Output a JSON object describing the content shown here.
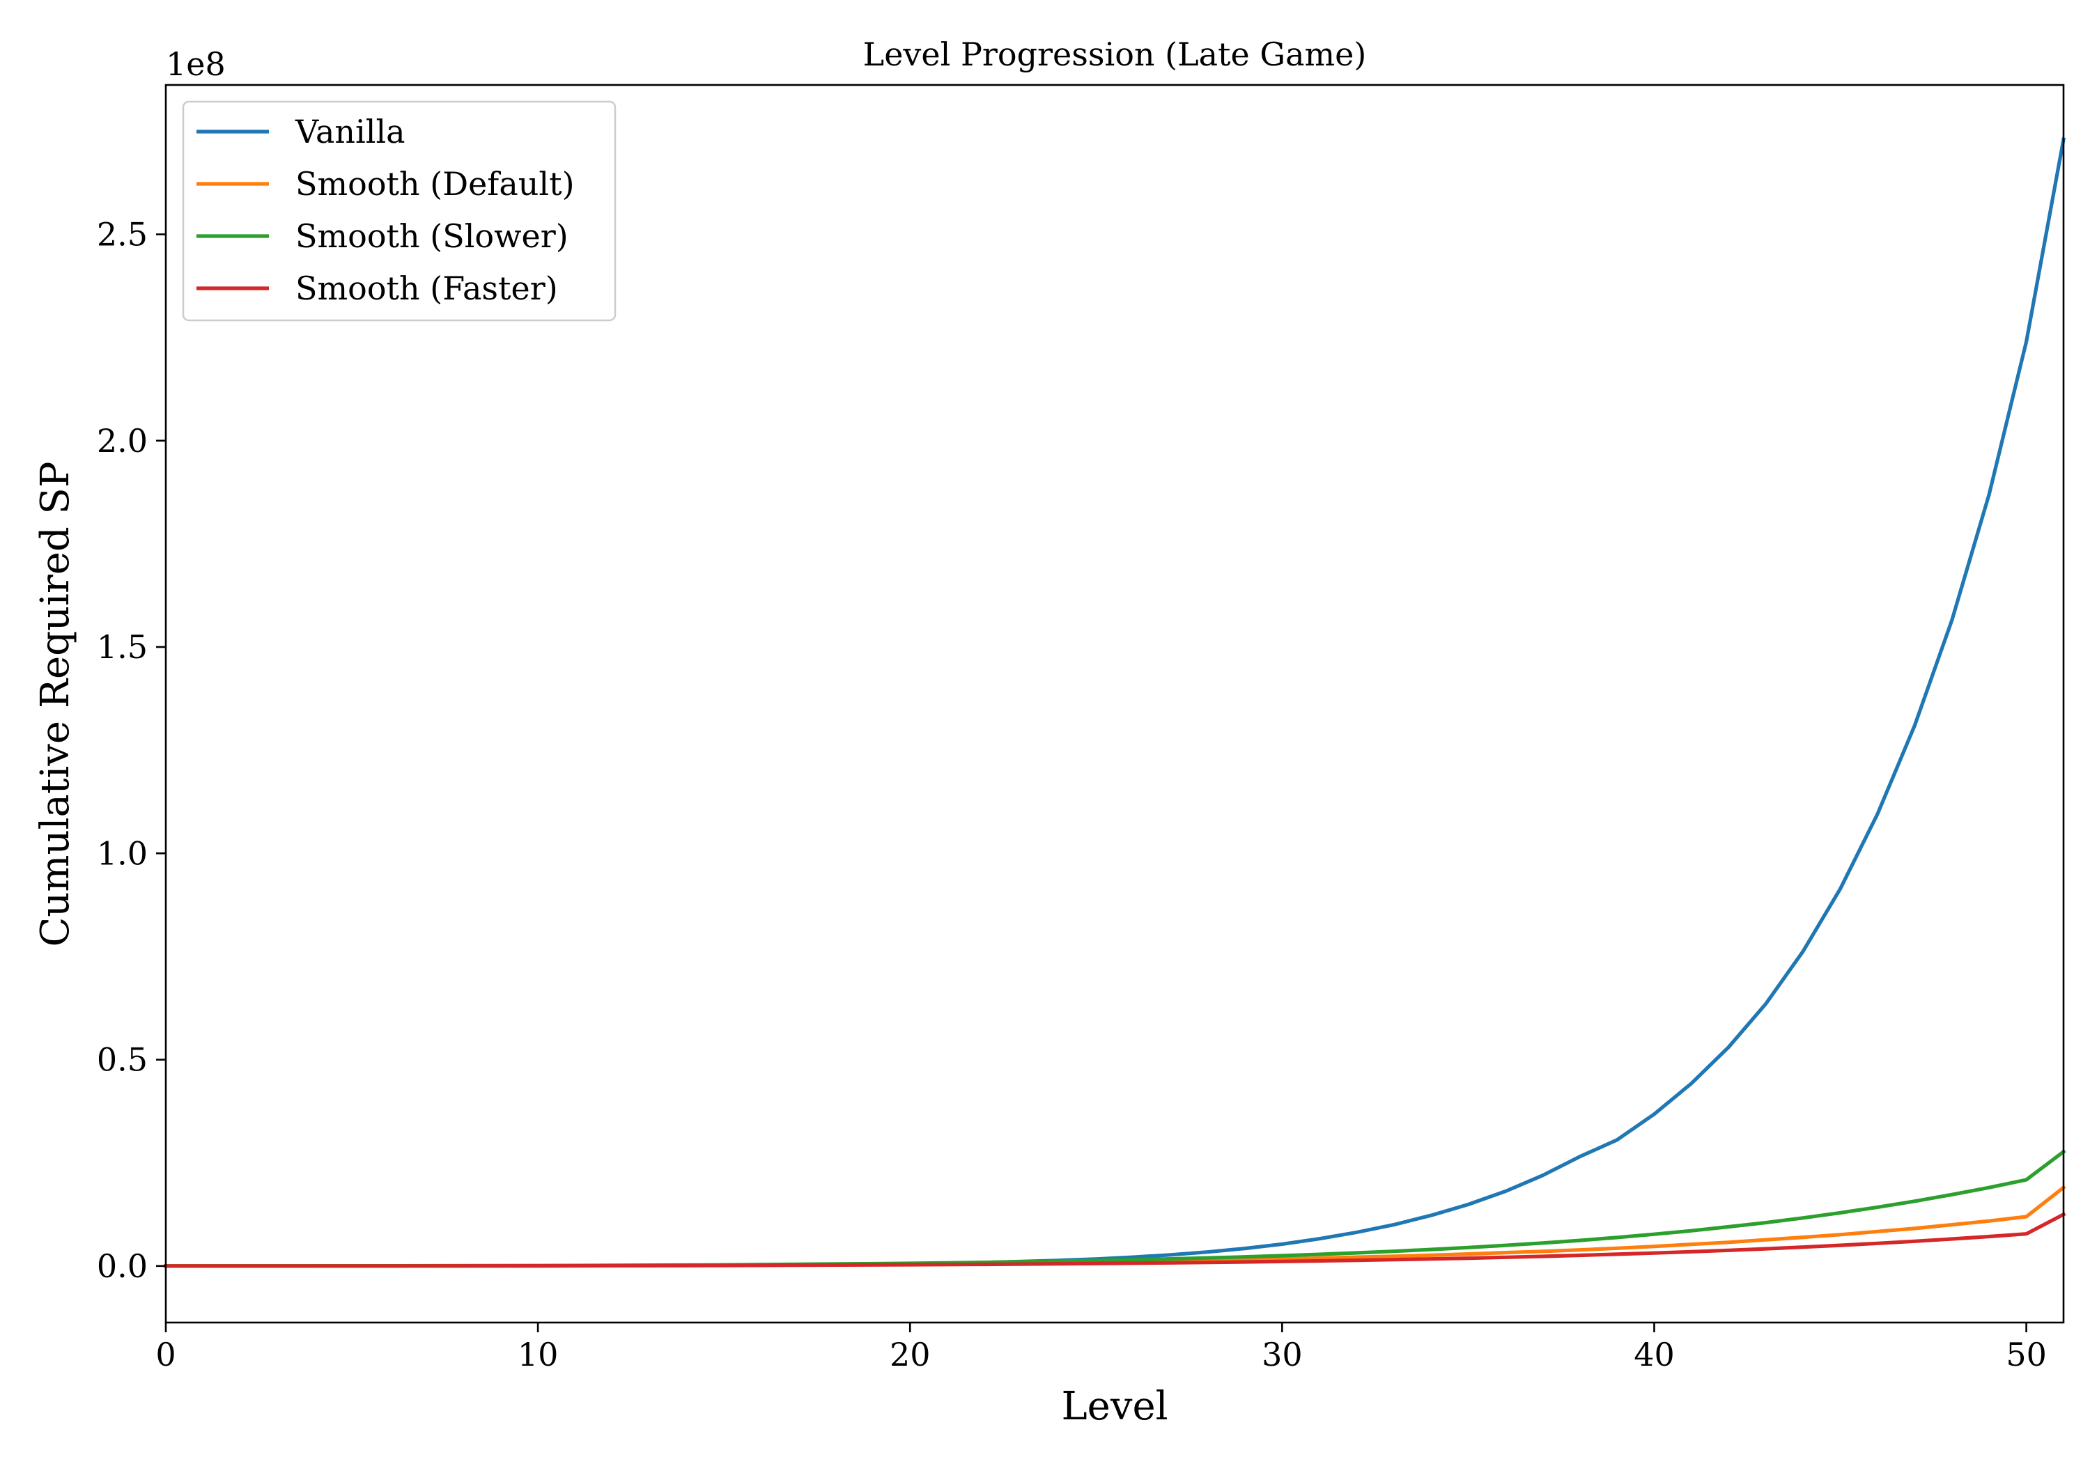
{
  "chart_data": {
    "type": "line",
    "title": "Level Progression (Late Game)",
    "xlabel": "Level",
    "ylabel": "Cumulative Required SP",
    "y_offset_label": "1e8",
    "y_scale_factor": 100000000,
    "xlim": [
      0,
      51
    ],
    "ylim": [
      -0.137,
      2.862
    ],
    "x_ticks": [
      0,
      10,
      20,
      30,
      40,
      50
    ],
    "x_tick_labels": [
      "0",
      "10",
      "20",
      "30",
      "40",
      "50"
    ],
    "y_ticks": [
      0.0,
      0.5,
      1.0,
      1.5,
      2.0,
      2.5
    ],
    "y_tick_labels": [
      "0.0",
      "0.5",
      "1.0",
      "1.5",
      "2.0",
      "2.5"
    ],
    "grid": false,
    "legend_placement": "upper-left",
    "x": [
      0,
      5,
      10,
      15,
      20,
      22,
      24,
      25,
      26,
      27,
      28,
      29,
      30,
      31,
      32,
      33,
      34,
      35,
      36,
      37,
      38,
      39,
      40,
      41,
      42,
      43,
      44,
      45,
      46,
      47,
      48,
      49,
      50,
      51
    ],
    "series": [
      {
        "name": "Vanilla",
        "color": "#1f77b4",
        "values": [
          0,
          0.0001,
          0.0005,
          0.0015,
          0.005,
          0.0085,
          0.0135,
          0.017,
          0.0215,
          0.027,
          0.034,
          0.0425,
          0.053,
          0.066,
          0.0815,
          0.1,
          0.1225,
          0.149,
          0.181,
          0.2195,
          0.265,
          0.3055,
          0.368,
          0.4425,
          0.5305,
          0.6355,
          0.7625,
          0.914,
          1.095,
          1.31,
          1.565,
          1.87,
          2.24,
          2.73
        ]
      },
      {
        "name": "Smooth (Default)",
        "color": "#ff7f0e",
        "values": [
          0,
          0.0001,
          0.0006,
          0.0018,
          0.0045,
          0.006,
          0.008,
          0.009,
          0.0105,
          0.012,
          0.0135,
          0.015,
          0.017,
          0.019,
          0.0215,
          0.0235,
          0.026,
          0.029,
          0.0325,
          0.0355,
          0.039,
          0.043,
          0.0475,
          0.0525,
          0.0575,
          0.0635,
          0.0695,
          0.076,
          0.0835,
          0.091,
          0.1,
          0.109,
          0.1195,
          0.19
        ]
      },
      {
        "name": "Smooth (Slower)",
        "color": "#2ca02c",
        "values": [
          0,
          0.0002,
          0.0009,
          0.0027,
          0.0065,
          0.0088,
          0.0117,
          0.0133,
          0.0152,
          0.0173,
          0.0196,
          0.0222,
          0.0251,
          0.0283,
          0.0318,
          0.0357,
          0.04,
          0.0448,
          0.05,
          0.0557,
          0.062,
          0.069,
          0.077,
          0.0855,
          0.095,
          0.105,
          0.1165,
          0.129,
          0.1425,
          0.157,
          0.173,
          0.19,
          0.209,
          0.277
        ]
      },
      {
        "name": "Smooth (Faster)",
        "color": "#d62728",
        "values": [
          0,
          0.0001,
          0.0004,
          0.0012,
          0.003,
          0.004,
          0.0053,
          0.006,
          0.0068,
          0.0077,
          0.0087,
          0.0098,
          0.011,
          0.0123,
          0.0138,
          0.0154,
          0.0171,
          0.019,
          0.0211,
          0.0233,
          0.0258,
          0.0285,
          0.0314,
          0.0346,
          0.038,
          0.0418,
          0.0458,
          0.0502,
          0.0549,
          0.06,
          0.0655,
          0.0714,
          0.0778,
          0.125
        ]
      }
    ]
  }
}
